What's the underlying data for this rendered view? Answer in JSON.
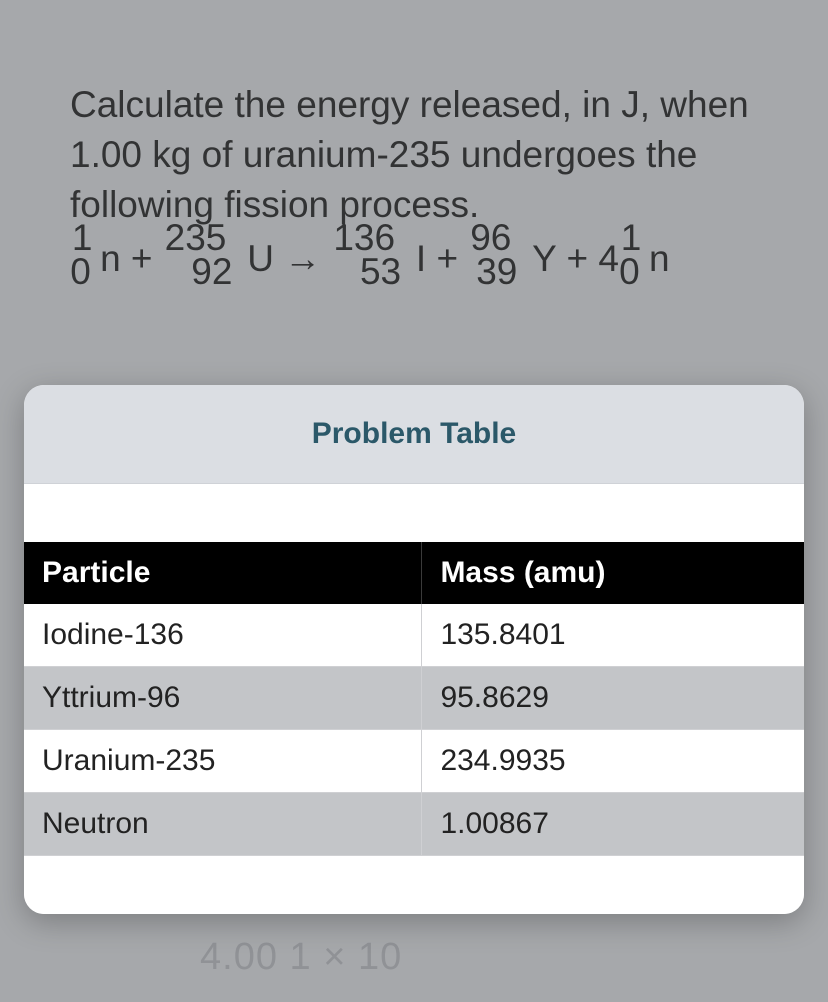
{
  "question": {
    "text": "Calculate the energy released, in J, when 1.00 kg of uranium-235 undergoes the following fission process."
  },
  "equation": {
    "n1": {
      "mass": "1",
      "atomic": "0",
      "symbol": "n"
    },
    "plus1": " + ",
    "u": {
      "mass": "235",
      "atomic": "92",
      "symbol": "U"
    },
    "arrow": " → ",
    "i": {
      "mass": "136",
      "atomic": "53",
      "symbol": "I"
    },
    "plus2": " + ",
    "y": {
      "mass": "96",
      "atomic": "39",
      "symbol": "Y"
    },
    "plus3": " + 4",
    "n2": {
      "mass": "1",
      "atomic": "0",
      "symbol": "n"
    }
  },
  "card": {
    "title": "Problem Table"
  },
  "table": {
    "columns": [
      "Particle",
      "Mass (amu)"
    ],
    "rows": [
      [
        "Iodine-136",
        "135.8401"
      ],
      [
        "Yttrium-96",
        "95.8629"
      ],
      [
        "Uranium-235",
        "234.9935"
      ],
      [
        "Neutron",
        "1.00867"
      ]
    ],
    "header_bg": "#000000",
    "header_fg": "#ffffff",
    "row_odd_bg": "#ffffff",
    "row_even_bg": "#c3c5c8",
    "border_color": "#cfd0d3",
    "font_size": 30
  },
  "faint": "4.00 1 × 10"
}
